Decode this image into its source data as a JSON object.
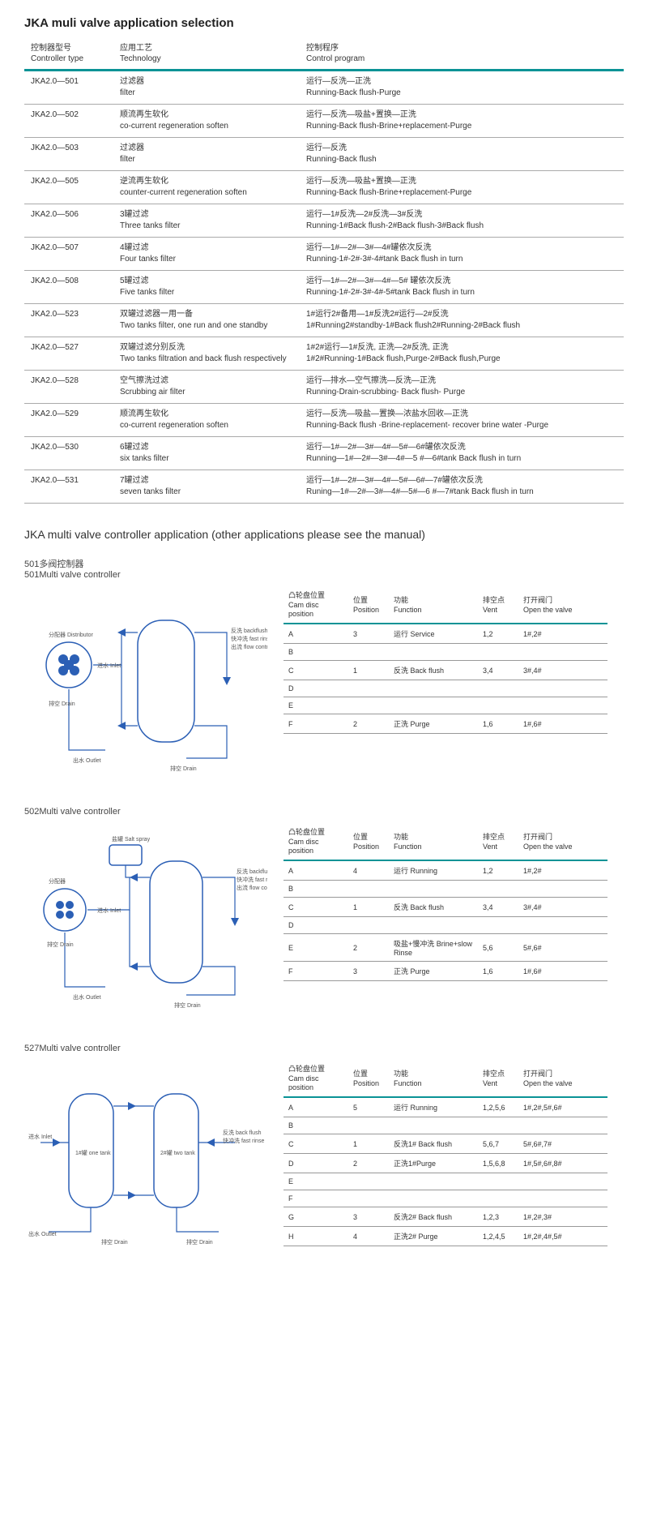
{
  "main_title": "JKA muli valve application selection",
  "headers": {
    "type_cn": "控制器型号",
    "type_en": "Controller type",
    "tech_cn": "应用工艺",
    "tech_en": "Technology",
    "prog_cn": "控制程序",
    "prog_en": "Control program"
  },
  "rows": [
    {
      "type": "JKA2.0—501",
      "tech_cn": "过滤器",
      "tech_en": "filter",
      "prog_cn": "运行—反洗—正洗",
      "prog_en": "Running-Back flush-Purge"
    },
    {
      "type": "JKA2.0—502",
      "tech_cn": "顺流再生软化",
      "tech_en": "co-current regeneration soften",
      "prog_cn": "运行—反洗—吸盐+置换—正洗",
      "prog_en": "Running-Back flush-Brine+replacement-Purge"
    },
    {
      "type": "JKA2.0—503",
      "tech_cn": "过滤器",
      "tech_en": "filter",
      "prog_cn": "运行—反洗",
      "prog_en": "Running-Back flush"
    },
    {
      "type": "JKA2.0—505",
      "tech_cn": "逆流再生软化",
      "tech_en": "counter-current regeneration soften",
      "prog_cn": "运行—反洗—吸盐+置换—正洗",
      "prog_en": "Running-Back flush-Brine+replacement-Purge"
    },
    {
      "type": "JKA2.0—506",
      "tech_cn": "3罐过滤",
      "tech_en": "Three tanks filter",
      "prog_cn": "运行—1#反洗—2#反洗—3#反洗",
      "prog_en": "Running-1#Back flush-2#Back flush-3#Back flush"
    },
    {
      "type": "JKA2.0—507",
      "tech_cn": "4罐过滤",
      "tech_en": "Four tanks filter",
      "prog_cn": "运行—1#—2#—3#—4#罐依次反洗",
      "prog_en": "Running-1#-2#-3#-4#tank Back flush in turn"
    },
    {
      "type": "JKA2.0—508",
      "tech_cn": "5罐过滤",
      "tech_en": "Five tanks filter",
      "prog_cn": "运行—1#—2#—3#—4#—5# 罐依次反洗",
      "prog_en": "Running-1#-2#-3#-4#-5#tank Back flush in turn"
    },
    {
      "type": "JKA2.0—523",
      "tech_cn": "双罐过滤器一用一备",
      "tech_en": "Two tanks filter, one run and one standby",
      "prog_cn": "1#运行2#备用—1#反洗2#运行—2#反洗",
      "prog_en": "1#Running2#standby-1#Back flush2#Running-2#Back flush"
    },
    {
      "type": "JKA2.0—527",
      "tech_cn": "双罐过滤分别反洗",
      "tech_en": "Two tanks filtration and back flush respectively",
      "prog_cn": "1#2#运行—1#反洗, 正洗—2#反洗, 正洗",
      "prog_en": "1#2#Running-1#Back flush,Purge-2#Back flush,Purge"
    },
    {
      "type": "JKA2.0—528",
      "tech_cn": "空气擦洗过滤",
      "tech_en": "Scrubbing air filter",
      "prog_cn": "运行—排水—空气擦洗—反洗—正洗",
      "prog_en": "Running-Drain-scrubbing-  Back flush- Purge"
    },
    {
      "type": "JKA2.0—529",
      "tech_cn": "顺流再生软化",
      "tech_en": "co-current regeneration soften",
      "prog_cn": "运行—反洗—吸盐—置换—浓盐水回收—正洗",
      "prog_en": "Running-Back flush -Brine-replacement- recover brine water -Purge"
    },
    {
      "type": "JKA2.0—530",
      "tech_cn": "6罐过滤",
      "tech_en": "six tanks filter",
      "prog_cn": "运行—1#—2#—3#—4#—5#—6#罐依次反洗",
      "prog_en": "Running—1#—2#—3#—4#—5  #—6#tank Back flush  in turn"
    },
    {
      "type": "JKA2.0—531",
      "tech_cn": "7罐过滤",
      "tech_en": "seven tanks filter",
      "prog_cn": "运行—1#—2#—3#—4#—5#—6#—7#罐依次反洗",
      "prog_en": "Runing—1#—2#—3#—4#—5#—6 #—7#tank Back flush  in turn"
    }
  ],
  "section2_title": "JKA multi valve  controller application (other applications please see the manual)",
  "cam_headers": {
    "cam_cn": "凸轮盘位置",
    "cam_en": "Cam disc position",
    "pos_cn": "位置",
    "pos_en": "Position",
    "func_cn": "功能",
    "func_en": "Function",
    "vent_cn": "排空点",
    "vent_en": "Vent",
    "valve_cn": "打开阀门",
    "valve_en": "Open the valve"
  },
  "controllers": [
    {
      "label_cn": "501多阀控制器",
      "label_en": "501Multi valve  controller",
      "diagram_labels": {
        "dist": "分配器 Distributor",
        "inlet": "进水 Inlet",
        "drain": "排空 Drain",
        "outlet": "出水 Outlet",
        "bf": "反洗 backflush",
        "fr": "快冲洗 fast rinse",
        "fc": "出流 flow control",
        "drain2": "排空 Drain"
      },
      "cam_rows": [
        {
          "cam": "A",
          "pos": "3",
          "func": "运行 Service",
          "vent": "1,2",
          "valve": "1#,2#"
        },
        {
          "cam": "B",
          "pos": "",
          "func": "",
          "vent": "",
          "valve": ""
        },
        {
          "cam": "C",
          "pos": "1",
          "func": "反洗 Back flush",
          "vent": "3,4",
          "valve": "3#,4#"
        },
        {
          "cam": "D",
          "pos": "",
          "func": "",
          "vent": "",
          "valve": ""
        },
        {
          "cam": "E",
          "pos": "",
          "func": "",
          "vent": "",
          "valve": ""
        },
        {
          "cam": "F",
          "pos": "2",
          "func": "正洗 Purge",
          "vent": "1,6",
          "valve": "1#,6#"
        }
      ]
    },
    {
      "label_cn": "",
      "label_en": "502Multi valve  controller",
      "diagram_labels": {
        "salt": "盐罐 Salt spray",
        "dist": "分配器",
        "inlet": "进水 Inlet",
        "drain": "排空 Drain",
        "outlet": "出水 Outlet",
        "bf": "反洗 backflush",
        "fr": "快冲洗 fast rinse",
        "fc": "出流 flow control",
        "drain2": "排空 Drain"
      },
      "cam_rows": [
        {
          "cam": "A",
          "pos": "4",
          "func": "运行 Running",
          "vent": "1,2",
          "valve": "1#,2#"
        },
        {
          "cam": "B",
          "pos": "",
          "func": "",
          "vent": "",
          "valve": ""
        },
        {
          "cam": "C",
          "pos": "1",
          "func": "反洗 Back flush",
          "vent": "3,4",
          "valve": "3#,4#"
        },
        {
          "cam": "D",
          "pos": "",
          "func": "",
          "vent": "",
          "valve": ""
        },
        {
          "cam": "E",
          "pos": "2",
          "func": "吸盐+慢冲洗 Brine+slow Rinse",
          "vent": "5,6",
          "valve": "5#,6#"
        },
        {
          "cam": "F",
          "pos": "3",
          "func": "正洗 Purge",
          "vent": "1,6",
          "valve": "1#,6#"
        }
      ]
    },
    {
      "label_cn": "",
      "label_en": "527Multi valve  controller",
      "diagram_labels": {
        "inlet": "进水 Inlet",
        "t1": "1#罐 one tank",
        "t2": "2#罐 two tank",
        "bf": "反洗 back flush",
        "fr": "快冲洗 fast rinse",
        "outlet": "出水 Outlet",
        "drain": "排空 Drain",
        "drain2": "排空 Drain"
      },
      "cam_rows": [
        {
          "cam": "A",
          "pos": "5",
          "func": "运行 Running",
          "vent": "1,2,5,6",
          "valve": "1#,2#,5#,6#"
        },
        {
          "cam": "B",
          "pos": "",
          "func": "",
          "vent": "",
          "valve": ""
        },
        {
          "cam": "C",
          "pos": "1",
          "func": "反洗1# Back flush",
          "vent": "5,6,7",
          "valve": "5#,6#,7#"
        },
        {
          "cam": "D",
          "pos": "2",
          "func": "正洗1#Purge",
          "vent": "1,5,6,8",
          "valve": "1#,5#,6#,8#"
        },
        {
          "cam": "E",
          "pos": "",
          "func": "",
          "vent": "",
          "valve": ""
        },
        {
          "cam": "F",
          "pos": "",
          "func": "",
          "vent": "",
          "valve": ""
        },
        {
          "cam": "G",
          "pos": "3",
          "func": "反洗2# Back flush",
          "vent": "1,2,3",
          "valve": "1#,2#,3#"
        },
        {
          "cam": "H",
          "pos": "4",
          "func": "正洗2# Purge",
          "vent": "1,2,4,5",
          "valve": "1#,2#,4#,5#"
        }
      ]
    }
  ],
  "colors": {
    "accent": "#0a9396",
    "line": "#2b5fb5",
    "border": "#aaaaaa"
  }
}
